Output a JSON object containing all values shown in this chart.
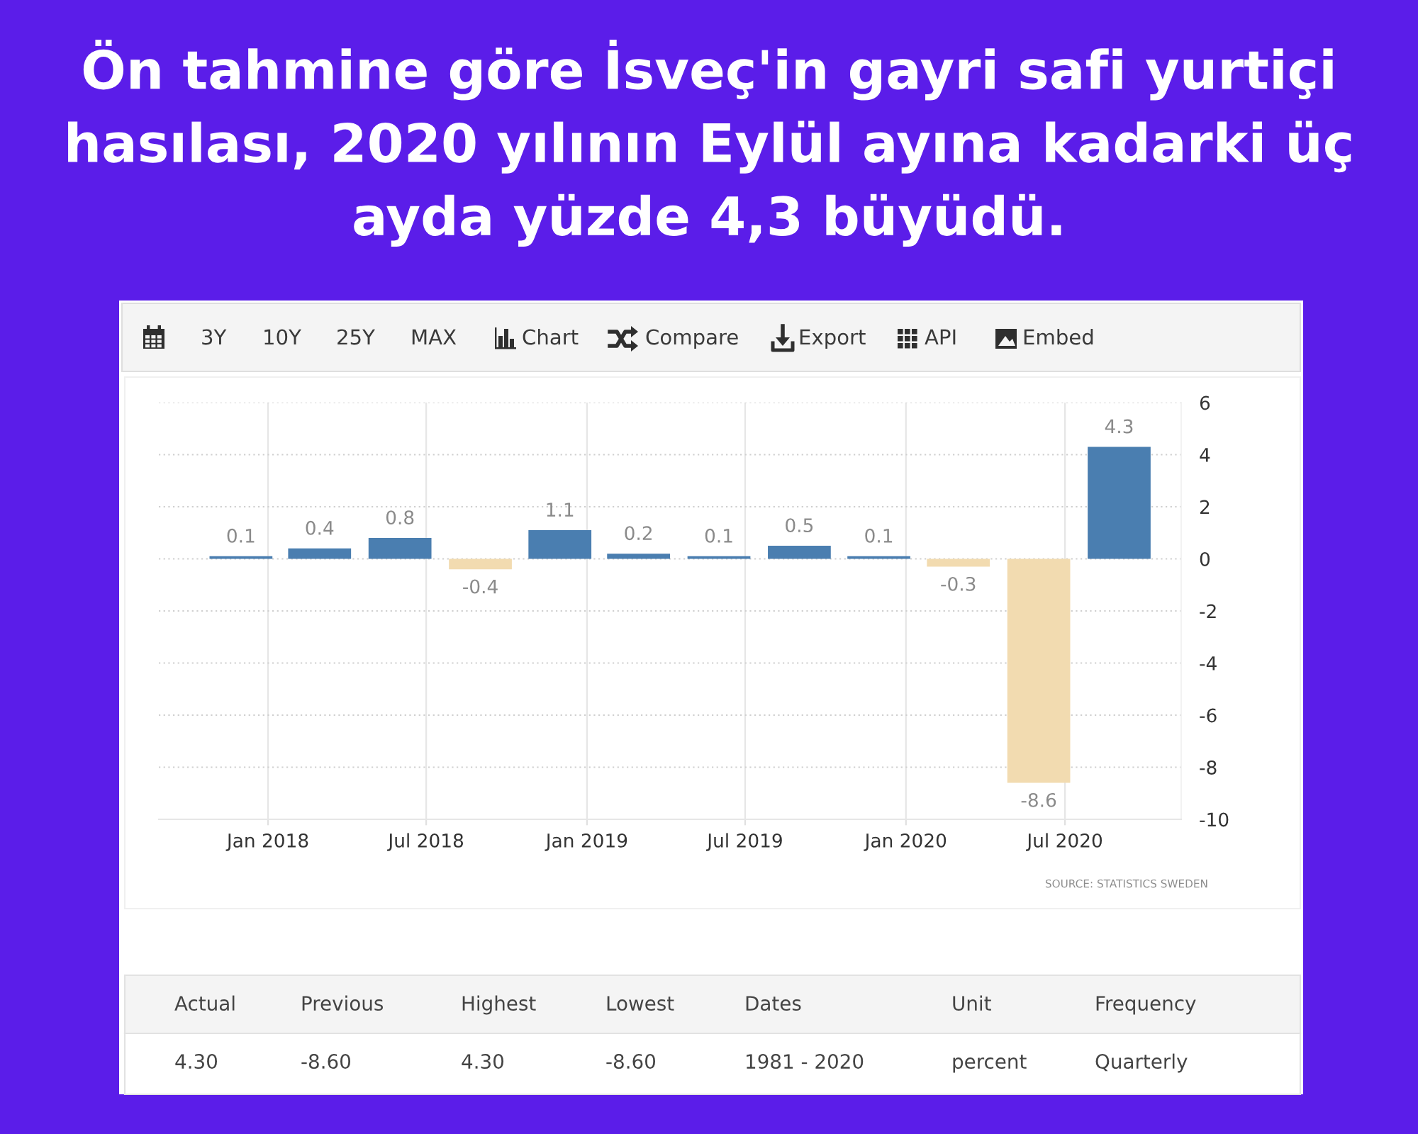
{
  "chart_data": {
    "type": "bar",
    "title": "Ön tahmine göre İsveç'in gayri safi yurtiçi hasılası, 2020 yılının Eylül ayına kadarki üç ayda yüzde 4,3 büyüdü.",
    "x": [
      "2017-12",
      "2018-03",
      "2018-06",
      "2018-09",
      "2018-12",
      "2019-03",
      "2019-06",
      "2019-09",
      "2019-12",
      "2020-03",
      "2020-06",
      "2020-09"
    ],
    "values": [
      0.1,
      0.4,
      0.8,
      -0.4,
      1.1,
      0.2,
      0.1,
      0.5,
      0.1,
      -0.3,
      -8.6,
      4.3
    ],
    "colors": [
      "#4a7eb0",
      "#4a7eb0",
      "#4a7eb0",
      "#f2dbb0",
      "#4a7eb0",
      "#4a7eb0",
      "#4a7eb0",
      "#4a7eb0",
      "#4a7eb0",
      "#f2dbb0",
      "#f2dbb0",
      "#4a7eb0"
    ],
    "data_labels": true,
    "xlim": [
      "2017-08-29",
      "2020-11-11"
    ],
    "xticks": [
      {
        "value": "2018-01",
        "label": "Jan 2018"
      },
      {
        "value": "2018-07",
        "label": "Jul 2018"
      },
      {
        "value": "2019-01",
        "label": "Jan 2019"
      },
      {
        "value": "2019-07",
        "label": "Jul 2019"
      },
      {
        "value": "2020-01",
        "label": "Jan 2020"
      },
      {
        "value": "2020-07",
        "label": "Jul 2020"
      }
    ],
    "ylim": [
      -10,
      6
    ],
    "yticks": [
      -10,
      -8,
      -6,
      -4,
      -2,
      0,
      2,
      4,
      6
    ],
    "grid": true,
    "annotations": [
      "3Y",
      "10Y",
      "25Y",
      "MAX",
      "Chart",
      "Compare",
      "Export",
      "API",
      "Embed",
      "SOURCE: STATISTICS SWEDEN",
      "Actual",
      "Previous",
      "Highest",
      "Lowest",
      "Dates",
      "Unit",
      "Frequency",
      "4.30",
      "-8.60",
      "4.30",
      "-8.60",
      "1981 - 2020",
      "percent",
      "Quarterly"
    ]
  }
}
